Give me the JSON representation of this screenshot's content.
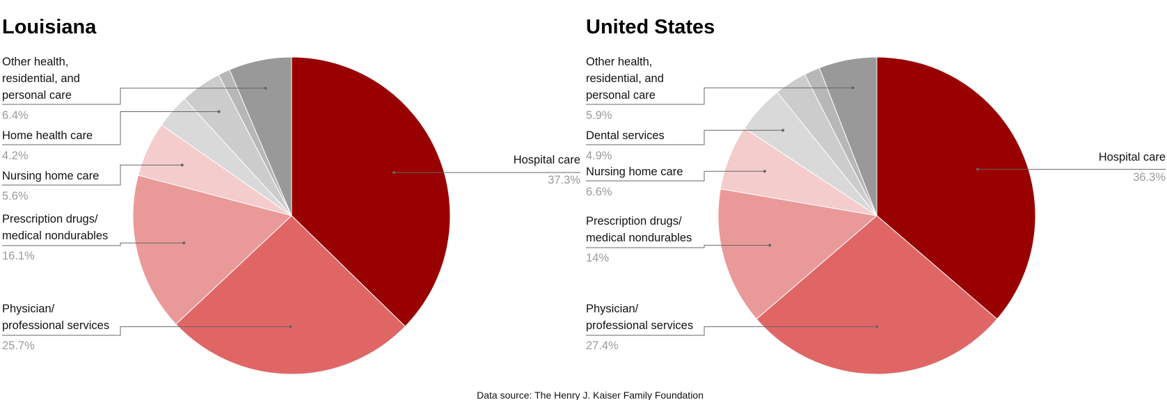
{
  "source_note": "Data source: The Henry J. Kaiser Family Foundation",
  "chart_data": [
    {
      "type": "pie",
      "title": "Louisiana",
      "slices": [
        {
          "name": "Hospital care",
          "value": 37.3,
          "label": "37.3%",
          "color": "#990000"
        },
        {
          "name": "Physician/ professional services",
          "value": 25.7,
          "label": "25.7%",
          "color": "#e06666"
        },
        {
          "name": "Prescription drugs/ medical nondurables",
          "value": 16.1,
          "label": "16.1%",
          "color": "#ea9999"
        },
        {
          "name": "Nursing home care",
          "value": 5.6,
          "label": "5.6%",
          "color": "#f4cccc"
        },
        {
          "name": "",
          "value": 3.5,
          "label": "",
          "color": "#d9d9d9"
        },
        {
          "name": "Home health care",
          "value": 4.2,
          "label": "4.2%",
          "color": "#cccccc"
        },
        {
          "name": "",
          "value": 1.2,
          "label": "",
          "color": "#b7b7b7"
        },
        {
          "name": "Other health, residential, and personal care",
          "value": 6.4,
          "label": "6.4%",
          "color": "#999999"
        }
      ]
    },
    {
      "type": "pie",
      "title": "United States",
      "slices": [
        {
          "name": "Hospital care",
          "value": 36.3,
          "label": "36.3%",
          "color": "#990000"
        },
        {
          "name": "Physician/ professional services",
          "value": 27.4,
          "label": "27.4%",
          "color": "#e06666"
        },
        {
          "name": "Prescription drugs/ medical nondurables",
          "value": 14,
          "label": "14%",
          "color": "#ea9999"
        },
        {
          "name": "Nursing home care",
          "value": 6.6,
          "label": "6.6%",
          "color": "#f4cccc"
        },
        {
          "name": "Dental services",
          "value": 4.9,
          "label": "4.9%",
          "color": "#d9d9d9"
        },
        {
          "name": "",
          "value": 3.3,
          "label": "",
          "color": "#cccccc"
        },
        {
          "name": "",
          "value": 1.6,
          "label": "",
          "color": "#b7b7b7"
        },
        {
          "name": "Other health, residential, and personal care",
          "value": 5.9,
          "label": "5.9%",
          "color": "#999999"
        }
      ]
    }
  ]
}
